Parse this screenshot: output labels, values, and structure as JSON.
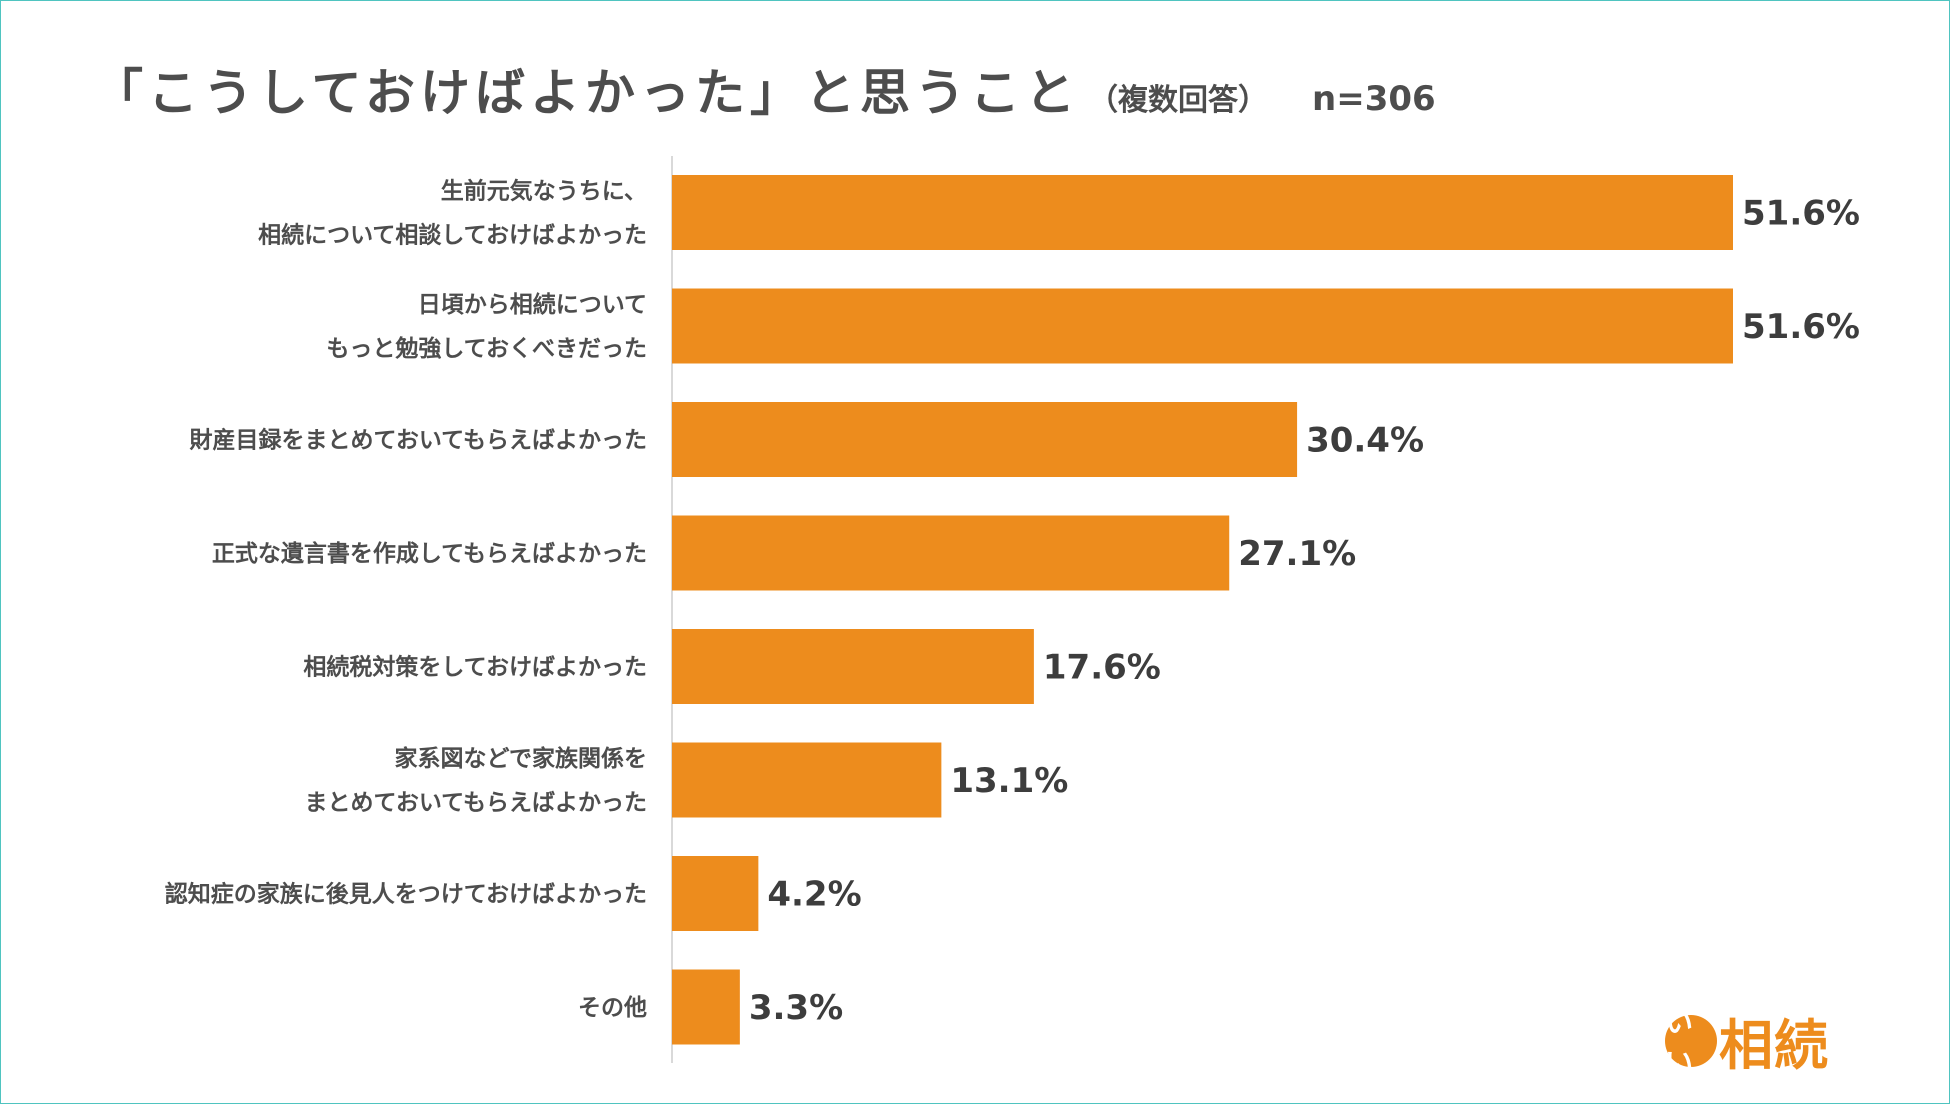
{
  "chart_data": {
    "type": "bar",
    "orientation": "horizontal",
    "title": "「こうしておけばよかった」と思うこと",
    "subtitle": "（複数回答）",
    "sample_size": "n=306",
    "categories": [
      "生前元気なうちに、\n相続について相談しておけばよかった",
      "日頃から相続について\nもっと勉強しておくべきだった",
      "財産目録をまとめておいてもらえばよかった",
      "正式な遺言書を作成してもらえばよかった",
      "相続税対策をしておけばよかった",
      "家系図などで家族関係を\nまとめておいてもらえばよかった",
      "認知症の家族に後見人をつけておけばよかった",
      "その他"
    ],
    "values": [
      51.6,
      51.6,
      30.4,
      27.1,
      17.6,
      13.1,
      4.2,
      3.3
    ],
    "value_labels": [
      "51.6%",
      "51.6%",
      "30.4%",
      "27.1%",
      "17.6%",
      "13.1%",
      "4.2%",
      "3.3%"
    ],
    "xlim": [
      0,
      51.6
    ],
    "bar_color": "#ed8c1d",
    "axis_color": "#d9d9d9"
  },
  "logo": {
    "circle_text": "いい",
    "text": "相続",
    "color": "#ed8c1d"
  }
}
